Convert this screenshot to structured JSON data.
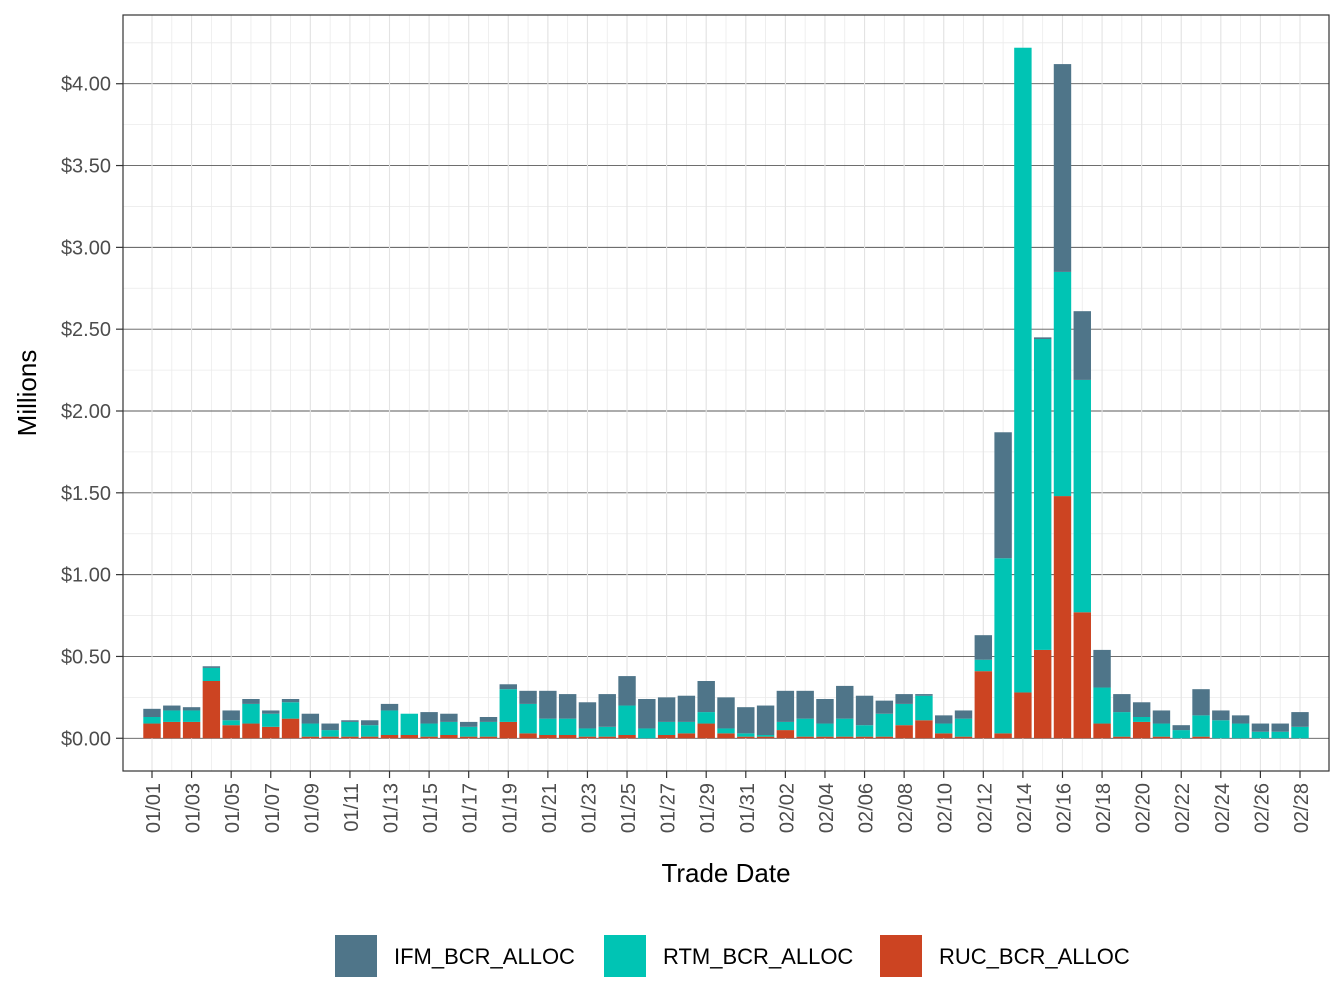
{
  "chart_data": {
    "type": "bar",
    "stacked": true,
    "xlabel": "Trade Date",
    "ylabel": "Millions",
    "ylim": [
      -0.2,
      4.42
    ],
    "y_ticks": [
      0,
      0.5,
      1,
      1.5,
      2,
      2.5,
      3,
      3.5,
      4
    ],
    "y_tick_labels": [
      "$0.00",
      "$0.50",
      "$1.00",
      "$1.50",
      "$2.00",
      "$2.50",
      "$3.00",
      "$3.50",
      "$4.00"
    ],
    "grid": true,
    "legend_position": "bottom",
    "categories": [
      "01/01",
      "01/02",
      "01/03",
      "01/04",
      "01/05",
      "01/06",
      "01/07",
      "01/08",
      "01/09",
      "01/10",
      "01/11",
      "01/12",
      "01/13",
      "01/14",
      "01/15",
      "01/16",
      "01/17",
      "01/18",
      "01/19",
      "01/20",
      "01/21",
      "01/22",
      "01/23",
      "01/24",
      "01/25",
      "01/26",
      "01/27",
      "01/28",
      "01/29",
      "01/30",
      "01/31",
      "02/01",
      "02/02",
      "02/03",
      "02/04",
      "02/05",
      "02/06",
      "02/07",
      "02/08",
      "02/09",
      "02/10",
      "02/11",
      "02/12",
      "02/13",
      "02/14",
      "02/15",
      "02/16",
      "02/17",
      "02/18",
      "02/19",
      "02/20",
      "02/21",
      "02/22",
      "02/23",
      "02/24",
      "02/25",
      "02/26",
      "02/27",
      "02/28"
    ],
    "x_tick_labels": [
      "01/01",
      "01/03",
      "01/05",
      "01/07",
      "01/09",
      "01/11",
      "01/13",
      "01/15",
      "01/17",
      "01/19",
      "01/21",
      "01/23",
      "01/25",
      "01/27",
      "01/29",
      "01/31",
      "02/02",
      "02/04",
      "02/06",
      "02/08",
      "02/10",
      "02/12",
      "02/14",
      "02/16",
      "02/18",
      "02/20",
      "02/22",
      "02/24",
      "02/26",
      "02/28"
    ],
    "series": [
      {
        "name": "RUC_BCR_ALLOC",
        "color": "#cc4422",
        "values": [
          0.09,
          0.1,
          0.1,
          0.35,
          0.08,
          0.09,
          0.07,
          0.12,
          0.01,
          0.01,
          0.01,
          0.01,
          0.02,
          0.02,
          0.01,
          0.02,
          0.01,
          0.01,
          0.1,
          0.03,
          0.02,
          0.02,
          0.01,
          0.01,
          0.02,
          0.0,
          0.02,
          0.03,
          0.09,
          0.03,
          0.01,
          0.01,
          0.05,
          0.01,
          0.01,
          0.01,
          0.01,
          0.01,
          0.08,
          0.11,
          0.03,
          0.01,
          0.41,
          0.03,
          0.28,
          0.54,
          1.48,
          0.77,
          0.09,
          0.01,
          0.1,
          0.01,
          0.0,
          0.01,
          0.0,
          0.0,
          0.0,
          0.0,
          0.0
        ]
      },
      {
        "name": "RTM_BCR_ALLOC",
        "color": "#00c4b4",
        "values": [
          0.04,
          0.07,
          0.07,
          0.08,
          0.03,
          0.12,
          0.08,
          0.1,
          0.08,
          0.04,
          0.09,
          0.07,
          0.15,
          0.13,
          0.08,
          0.08,
          0.06,
          0.09,
          0.2,
          0.18,
          0.1,
          0.1,
          0.05,
          0.06,
          0.18,
          0.06,
          0.08,
          0.07,
          0.07,
          0.03,
          0.02,
          0.01,
          0.05,
          0.11,
          0.08,
          0.11,
          0.07,
          0.14,
          0.13,
          0.15,
          0.06,
          0.11,
          0.07,
          1.07,
          3.94,
          1.9,
          1.37,
          1.42,
          0.22,
          0.15,
          0.03,
          0.08,
          0.05,
          0.13,
          0.11,
          0.09,
          0.04,
          0.04,
          0.07
        ]
      },
      {
        "name": "IFM_BCR_ALLOC",
        "color": "#4f7589",
        "values": [
          0.05,
          0.03,
          0.02,
          0.01,
          0.06,
          0.03,
          0.02,
          0.02,
          0.06,
          0.04,
          0.01,
          0.03,
          0.04,
          0.0,
          0.07,
          0.05,
          0.03,
          0.03,
          0.03,
          0.08,
          0.17,
          0.15,
          0.16,
          0.2,
          0.18,
          0.18,
          0.15,
          0.16,
          0.19,
          0.19,
          0.16,
          0.18,
          0.19,
          0.17,
          0.15,
          0.2,
          0.18,
          0.08,
          0.06,
          0.01,
          0.05,
          0.05,
          0.15,
          0.77,
          0.0,
          0.01,
          1.27,
          0.42,
          0.23,
          0.11,
          0.09,
          0.08,
          0.03,
          0.16,
          0.06,
          0.05,
          0.05,
          0.05,
          0.09
        ]
      }
    ],
    "legend_order": [
      "IFM_BCR_ALLOC",
      "RTM_BCR_ALLOC",
      "RUC_BCR_ALLOC"
    ]
  }
}
